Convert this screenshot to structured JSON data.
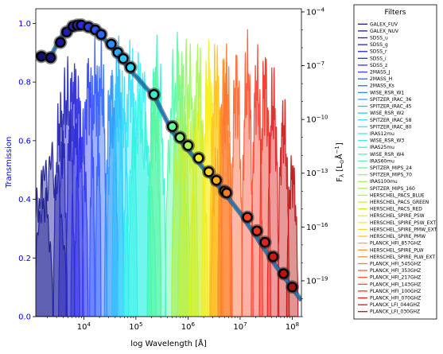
{
  "chart_data": {
    "type": "line",
    "xlabel": "log Wavelength [Å]",
    "ylabel_left": "Transmission",
    "ylabel_right": "F",
    "ylabel_right_sub": "λ",
    "ylabel_right_unit": " [L",
    "ylabel_right_unit_sub": "⊙",
    "ylabel_right_unit_tail": "Å",
    "ylabel_right_unit_exp": "−1",
    "ylabel_right_unit_close": "]",
    "xscale": "log",
    "xlim": [
      1200,
      150000000
    ],
    "ylim_left": [
      0.0,
      1.05
    ],
    "yscale_right": "log",
    "ylim_right": [
      1e-21,
      0.00015
    ],
    "x_ticks": [
      {
        "value": 10000,
        "base": "10",
        "exp": "4"
      },
      {
        "value": 100000,
        "base": "10",
        "exp": "5"
      },
      {
        "value": 1000000,
        "base": "10",
        "exp": "6"
      },
      {
        "value": 10000000,
        "base": "10",
        "exp": "7"
      },
      {
        "value": 100000000,
        "base": "10",
        "exp": "8"
      }
    ],
    "y_left_ticks": [
      {
        "value": 0.0,
        "label": "0.0"
      },
      {
        "value": 0.2,
        "label": "0.2"
      },
      {
        "value": 0.4,
        "label": "0.4"
      },
      {
        "value": 0.6,
        "label": "0.6"
      },
      {
        "value": 0.8,
        "label": "0.8"
      },
      {
        "value": 1.0,
        "label": "1.0"
      }
    ],
    "y_right_ticks": [
      {
        "value": 0.0001,
        "base": "10",
        "exp": "−4"
      },
      {
        "value": 1e-07,
        "base": "10",
        "exp": "−7"
      },
      {
        "value": 1e-10,
        "base": "10",
        "exp": "−10"
      },
      {
        "value": 1e-13,
        "base": "10",
        "exp": "−13"
      },
      {
        "value": 1e-16,
        "base": "10",
        "exp": "−16"
      },
      {
        "value": 1e-19,
        "base": "10",
        "exp": "−19"
      }
    ],
    "legend_title": "Filters",
    "legend_placement": "outside-right",
    "filters": [
      {
        "name": "GALEX_FUV",
        "center": 1540,
        "width": 0.1,
        "peak": 0.5,
        "color": "#1a1a8c"
      },
      {
        "name": "GALEX_NUV",
        "center": 2310,
        "width": 0.14,
        "peak": 0.62,
        "color": "#1e1e96"
      },
      {
        "name": "SDSS_u",
        "center": 3550,
        "width": 0.06,
        "peak": 0.8,
        "color": "#2323a8"
      },
      {
        "name": "SDSS_g",
        "center": 4690,
        "width": 0.07,
        "peak": 0.9,
        "color": "#2626bb"
      },
      {
        "name": "SDSS_r",
        "center": 6170,
        "width": 0.06,
        "peak": 0.92,
        "color": "#2a2acc"
      },
      {
        "name": "SDSS_i",
        "center": 7480,
        "width": 0.055,
        "peak": 0.88,
        "color": "#2d2ddd"
      },
      {
        "name": "SDSS_z",
        "center": 8930,
        "width": 0.06,
        "peak": 0.75,
        "color": "#3030ee"
      },
      {
        "name": "2MASS_J",
        "center": 12350,
        "width": 0.055,
        "peak": 0.95,
        "color": "#3344ff"
      },
      {
        "name": "2MASS_H",
        "center": 16620,
        "width": 0.05,
        "peak": 0.97,
        "color": "#3355ff"
      },
      {
        "name": "2MASS_Ks",
        "center": 21590,
        "width": 0.05,
        "peak": 0.98,
        "color": "#3366ff"
      },
      {
        "name": "WISE_RSR_W1",
        "center": 33680,
        "width": 0.06,
        "peak": 0.9,
        "color": "#2f8cff"
      },
      {
        "name": "SPITZER_IRAC_36",
        "center": 35500,
        "width": 0.05,
        "peak": 0.84,
        "color": "#33a0ff"
      },
      {
        "name": "SPITZER_IRAC_45",
        "center": 44930,
        "width": 0.05,
        "peak": 0.98,
        "color": "#33b4ff"
      },
      {
        "name": "WISE_RSR_W2",
        "center": 46180,
        "width": 0.05,
        "peak": 0.92,
        "color": "#33c6ff"
      },
      {
        "name": "SPITZER_IRAC_58",
        "center": 57310,
        "width": 0.045,
        "peak": 0.86,
        "color": "#33d8ff"
      },
      {
        "name": "SPITZER_IRAC_80",
        "center": 78720,
        "width": 0.06,
        "peak": 0.98,
        "color": "#33e6ff"
      },
      {
        "name": "IRAS12mu",
        "center": 120000,
        "width": 0.1,
        "peak": 0.96,
        "color": "#33f0ee"
      },
      {
        "name": "WISE_RSR_W3",
        "center": 120820,
        "width": 0.14,
        "peak": 0.78,
        "color": "#33f5dd"
      },
      {
        "name": "IRAS25mu",
        "center": 250000,
        "width": 0.08,
        "peak": 0.99,
        "color": "#33f8cc"
      },
      {
        "name": "WISE_RSR_W4",
        "center": 221940,
        "width": 0.06,
        "peak": 0.85,
        "color": "#44f8bb"
      },
      {
        "name": "IRAS60mu",
        "center": 600000,
        "width": 0.1,
        "peak": 0.98,
        "color": "#55f8aa"
      },
      {
        "name": "SPITZER_MIPS_24",
        "center": 238400,
        "width": 0.05,
        "peak": 0.92,
        "color": "#66f599"
      },
      {
        "name": "SPITZER_MIPS_70",
        "center": 724200,
        "width": 0.08,
        "peak": 0.97,
        "color": "#88f577"
      },
      {
        "name": "IRAS100mu",
        "center": 1000000,
        "width": 0.09,
        "peak": 0.97,
        "color": "#99f566"
      },
      {
        "name": "SPITZER_MIPS_160",
        "center": 1564000,
        "width": 0.06,
        "peak": 0.99,
        "color": "#aaf555"
      },
      {
        "name": "HERSCHEL_PACS_BLUE",
        "center": 700000,
        "width": 0.07,
        "peak": 0.7,
        "color": "#bbf244"
      },
      {
        "name": "HERSCHEL_PACS_GREEN",
        "center": 1000000,
        "width": 0.07,
        "peak": 0.74,
        "color": "#ccf033"
      },
      {
        "name": "HERSCHEL_PACS_RED",
        "center": 1600000,
        "width": 0.08,
        "peak": 0.78,
        "color": "#ddee22"
      },
      {
        "name": "HERSCHEL_SPIRE_PSW",
        "center": 2500000,
        "width": 0.06,
        "peak": 0.97,
        "color": "#eeee22"
      },
      {
        "name": "HERSCHEL_SPIRE_PSW_EXT",
        "center": 2500000,
        "width": 0.05,
        "peak": 0.88,
        "color": "#ffee22"
      },
      {
        "name": "HERSCHEL_SPIRE_PMW_EXT",
        "center": 3500000,
        "width": 0.05,
        "peak": 0.9,
        "color": "#ffd822"
      },
      {
        "name": "HERSCHEL_SPIRE_PMW",
        "center": 3500000,
        "width": 0.06,
        "peak": 0.97,
        "color": "#ffc422"
      },
      {
        "name": "PLANCK_HFI_857GHZ",
        "center": 3500000,
        "width": 0.05,
        "peak": 0.6,
        "color": "#ffaa22"
      },
      {
        "name": "HERSCHEL_SPIRE_PLW",
        "center": 5000000,
        "width": 0.06,
        "peak": 0.96,
        "color": "#ff9922"
      },
      {
        "name": "HERSCHEL_SPIRE_PLW_EXT",
        "center": 5000000,
        "width": 0.05,
        "peak": 0.88,
        "color": "#ff8833"
      },
      {
        "name": "PLANCK_HFI_545GHZ",
        "center": 5500000,
        "width": 0.05,
        "peak": 0.95,
        "color": "#ff7733"
      },
      {
        "name": "PLANCK_HFI_353GHZ",
        "center": 8500000,
        "width": 0.05,
        "peak": 0.96,
        "color": "#ff6633"
      },
      {
        "name": "PLANCK_HFI_217GHZ",
        "center": 13800000,
        "width": 0.05,
        "peak": 0.99,
        "color": "#ff5533"
      },
      {
        "name": "PLANCK_HFI_143GHZ",
        "center": 21000000,
        "width": 0.05,
        "peak": 0.95,
        "color": "#ff4433"
      },
      {
        "name": "PLANCK_HFI_100GHZ",
        "center": 30000000,
        "width": 0.05,
        "peak": 0.96,
        "color": "#ee3322"
      },
      {
        "name": "PLANCK_HFI_070GHZ",
        "center": 43000000,
        "width": 0.05,
        "peak": 0.88,
        "color": "#dd2222"
      },
      {
        "name": "PLANCK_LFI_044GHZ",
        "center": 68000000,
        "width": 0.05,
        "peak": 0.78,
        "color": "#cc1a1a"
      },
      {
        "name": "PLANCK_LFI_030GHZ",
        "center": 100000000,
        "width": 0.05,
        "peak": 0.58,
        "color": "#bb1111"
      }
    ],
    "sed_curve": [
      {
        "x": 1200,
        "y": 4.2e-07
      },
      {
        "x": 1600,
        "y": 3e-07
      },
      {
        "x": 2000,
        "y": 2.7e-07
      },
      {
        "x": 2500,
        "y": 5e-07
      },
      {
        "x": 3200,
        "y": 2e-06
      },
      {
        "x": 4000,
        "y": 6e-06
      },
      {
        "x": 5000,
        "y": 1.2e-05
      },
      {
        "x": 6500,
        "y": 1.7e-05
      },
      {
        "x": 8000,
        "y": 1.9e-05
      },
      {
        "x": 10000,
        "y": 1.8e-05
      },
      {
        "x": 14000,
        "y": 1.3e-05
      },
      {
        "x": 20000,
        "y": 6.5e-06
      },
      {
        "x": 30000,
        "y": 1.5e-06
      },
      {
        "x": 45000,
        "y": 4e-07
      },
      {
        "x": 70000,
        "y": 8e-08
      },
      {
        "x": 120000,
        "y": 1.4e-08
      },
      {
        "x": 240000,
        "y": 1.4e-09
      },
      {
        "x": 500000,
        "y": 2e-11
      },
      {
        "x": 1000000,
        "y": 2e-12
      },
      {
        "x": 2000000,
        "y": 1.8e-13
      },
      {
        "x": 5000000,
        "y": 8e-15
      },
      {
        "x": 10000000,
        "y": 6e-16
      },
      {
        "x": 20000000,
        "y": 3e-17
      },
      {
        "x": 50000000,
        "y": 6e-19
      },
      {
        "x": 100000000,
        "y": 4e-20
      },
      {
        "x": 150000000,
        "y": 8e-21
      }
    ],
    "sed_points": [
      {
        "x": 1540,
        "y": 3.3e-07,
        "err": true,
        "color": "#101070"
      },
      {
        "x": 2310,
        "y": 2.8e-07,
        "err": true,
        "color": "#14148a"
      },
      {
        "x": 3550,
        "y": 2e-06,
        "err": true,
        "color": "#1818a0"
      },
      {
        "x": 4690,
        "y": 7.5e-06,
        "err": true,
        "color": "#1c1cb8"
      },
      {
        "x": 6170,
        "y": 1.55e-05,
        "err": true,
        "color": "#2020cc"
      },
      {
        "x": 7480,
        "y": 1.8e-05,
        "err": true,
        "color": "#2424dd"
      },
      {
        "x": 8930,
        "y": 1.85e-05,
        "err": true,
        "color": "#2828ee"
      },
      {
        "x": 12350,
        "y": 1.45e-05,
        "err": true,
        "color": "#2a3cff"
      },
      {
        "x": 16620,
        "y": 1e-05,
        "err": true,
        "color": "#2a52ff"
      },
      {
        "x": 21590,
        "y": 5.5e-06,
        "err": true,
        "color": "#2a66ff"
      },
      {
        "x": 33680,
        "y": 1.6e-06,
        "err": true,
        "color": "#2a8cff"
      },
      {
        "x": 44930,
        "y": 5.5e-07,
        "err": true,
        "color": "#2aaaff"
      },
      {
        "x": 57310,
        "y": 2.5e-07,
        "err": true,
        "color": "#2ac6ff"
      },
      {
        "x": 78720,
        "y": 8e-08,
        "err": true,
        "color": "#2ad8ff"
      },
      {
        "x": 221940,
        "y": 2.5e-09,
        "err": true,
        "color": "#33f0cc"
      },
      {
        "x": 500000,
        "y": 4e-11,
        "err": true,
        "color": "#66f599"
      },
      {
        "x": 700000,
        "y": 1e-11,
        "err": true,
        "color": "#88f577"
      },
      {
        "x": 1000000,
        "y": 3.5e-12,
        "err": true,
        "color": "#aaf555"
      },
      {
        "x": 1600000,
        "y": 7e-13,
        "err": true,
        "color": "#eeee22"
      },
      {
        "x": 2500000,
        "y": 1.2e-13,
        "err": true,
        "color": "#ffcc22"
      },
      {
        "x": 3500000,
        "y": 4e-14,
        "err": true,
        "color": "#ffaa11"
      },
      {
        "x": 5000000,
        "y": 1e-14,
        "err": true,
        "color": "#ff8811"
      },
      {
        "x": 5500000,
        "y": 8e-15,
        "err": true,
        "color": "#ff7722"
      },
      {
        "x": 13800000,
        "y": 3.5e-16,
        "err": true,
        "color": "#ff4422"
      },
      {
        "x": 21000000,
        "y": 6e-17,
        "err": true,
        "color": "#ee3322"
      },
      {
        "x": 30000000,
        "y": 1.4e-17,
        "err": true,
        "color": "#dd2222"
      },
      {
        "x": 43000000,
        "y": 2.2e-18,
        "err": true,
        "color": "#cc1a1a"
      },
      {
        "x": 68000000,
        "y": 2.5e-19,
        "err": true,
        "color": "#bb1111"
      },
      {
        "x": 100000000,
        "y": 4.5e-20,
        "err": true,
        "color": "#aa1111"
      }
    ],
    "colors": {
      "left_axis": "#0000ff",
      "sed_line": "#1f77b4",
      "sed_line_dark": "#0b3d66"
    }
  }
}
